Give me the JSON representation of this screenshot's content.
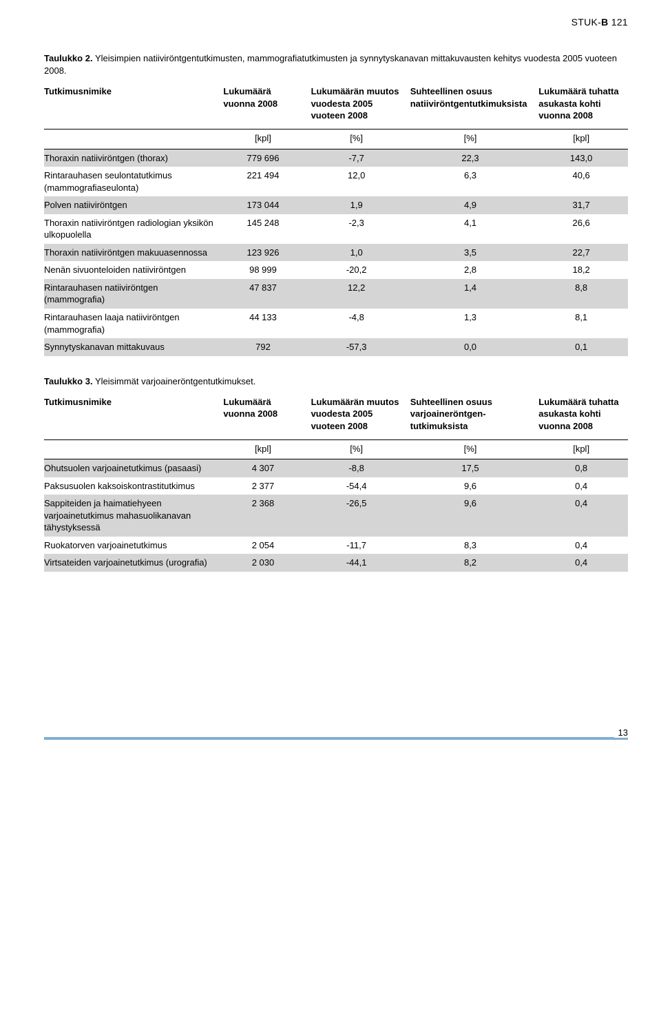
{
  "doc_header": {
    "prefix": "STUK-",
    "bold_letter": "B",
    "suffix": " 121"
  },
  "table2": {
    "caption_bold": "Taulukko 2.",
    "caption_rest": " Yleisimpien natiiviröntgentutkimusten, mammografiatutkimusten ja synnytyskanavan mittakuvausten kehitys vuodesta 2005 vuoteen 2008.",
    "headers": {
      "c1": "Tutkimusnimike",
      "c2": "Lukumäärä vuonna 2008",
      "c3": "Lukumäärän muutos vuodesta 2005 vuoteen 2008",
      "c4": "Suhteellinen osuus natiiviröntgen­tutkimuksista",
      "c5": "Lukumäärä tuhatta asukasta kohti vuonna 2008"
    },
    "units": {
      "c2": "[kpl]",
      "c3": "[%]",
      "c4": "[%]",
      "c5": "[kpl]"
    },
    "rows": [
      {
        "name": "Thoraxin natiiviröntgen (thorax)",
        "v2": "779 696",
        "v3": "-7,7",
        "v4": "22,3",
        "v5": "143,0",
        "shade": true
      },
      {
        "name": "Rintarauhasen seulontatutkimus (mammografiaseulonta)",
        "v2": "221 494",
        "v3": "12,0",
        "v4": "6,3",
        "v5": "40,6",
        "shade": false
      },
      {
        "name": "Polven natiiviröntgen",
        "v2": "173 044",
        "v3": "1,9",
        "v4": "4,9",
        "v5": "31,7",
        "shade": true
      },
      {
        "name": "Thoraxin natiiviröntgen radiologian yksikön ulkopuolella",
        "v2": "145 248",
        "v3": "-2,3",
        "v4": "4,1",
        "v5": "26,6",
        "shade": false
      },
      {
        "name": "Thoraxin natiiviröntgen makuuasennossa",
        "v2": "123 926",
        "v3": "1,0",
        "v4": "3,5",
        "v5": "22,7",
        "shade": true
      },
      {
        "name": "Nenän sivuonteloiden natiiviröntgen",
        "v2": "98 999",
        "v3": "-20,2",
        "v4": "2,8",
        "v5": "18,2",
        "shade": false
      },
      {
        "name": "Rintarauhasen natiiviröntgen (mammografia)",
        "v2": "47 837",
        "v3": "12,2",
        "v4": "1,4",
        "v5": "8,8",
        "shade": true
      },
      {
        "name": "Rintarauhasen laaja natiiviröntgen (mammografia)",
        "v2": "44 133",
        "v3": "-4,8",
        "v4": "1,3",
        "v5": "8,1",
        "shade": false
      },
      {
        "name": "Synnytyskanavan mittakuvaus",
        "v2": "792",
        "v3": "-57,3",
        "v4": "0,0",
        "v5": "0,1",
        "shade": true
      }
    ]
  },
  "table3": {
    "caption_bold": "Taulukko 3.",
    "caption_rest": " Yleisimmät varjoaineröntgentutkimukset.",
    "headers": {
      "c1": "Tutkimusnimike",
      "c2": "Lukumäärä vuonna 2008",
      "c3": "Lukumäärän muutos vuodesta 2005 vuoteen 2008",
      "c4": "Suhteellinen osuus varjoaineröntgen­tutkimuksista",
      "c5": "Lukumäärä tuhatta asukasta kohti vuonna 2008"
    },
    "units": {
      "c2": "[kpl]",
      "c3": "[%]",
      "c4": "[%]",
      "c5": "[kpl]"
    },
    "rows": [
      {
        "name": "Ohutsuolen varjoainetutkimus (pasaasi)",
        "v2": "4 307",
        "v3": "-8,8",
        "v4": "17,5",
        "v5": "0,8",
        "shade": true
      },
      {
        "name": "Paksusuolen kaksoiskontrastitutkimus",
        "v2": "2 377",
        "v3": "-54,4",
        "v4": "9,6",
        "v5": "0,4",
        "shade": false
      },
      {
        "name": "Sappiteiden ja haimatiehyeen varjoainetutkimus mahasuolikanavan tähystyksessä",
        "v2": "2 368",
        "v3": "-26,5",
        "v4": "9,6",
        "v5": "0,4",
        "shade": true
      },
      {
        "name": "Ruokatorven varjoainetutkimus",
        "v2": "2 054",
        "v3": "-11,7",
        "v4": "8,3",
        "v5": "0,4",
        "shade": false
      },
      {
        "name": "Virtsateiden varjoainetutkimus (urografia)",
        "v2": "2 030",
        "v3": "-44,1",
        "v4": "8,2",
        "v5": "0,4",
        "shade": true
      }
    ]
  },
  "page_number": "13",
  "colors": {
    "shade": "#d5d5d5",
    "footer_bar": "#7fb0d4",
    "text": "#000000",
    "bg": "#ffffff"
  }
}
